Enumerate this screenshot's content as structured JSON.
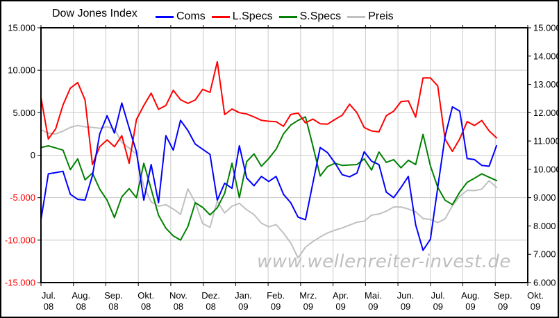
{
  "title": "Dow Jones Index",
  "watermark": {
    "text": "www.wellenreiter-invest.de",
    "color": "#bfbfbf"
  },
  "legend": [
    {
      "label": "Coms",
      "color": "#0000ff"
    },
    {
      "label": "L.Specs",
      "color": "#ff0000"
    },
    {
      "label": "S.Specs",
      "color": "#008000"
    },
    {
      "label": "Preis",
      "color": "#c0c0c0"
    }
  ],
  "colors": {
    "grid": "#c9c9c9",
    "frame": "#000000",
    "background": "#ffffff",
    "negative_tick": "#ff0000",
    "tick_text": "#000000"
  },
  "axes": {
    "left": {
      "labels": [
        "15.000",
        "10.000",
        "5.000",
        "0",
        "-5.000",
        "-10.000",
        "-15.000"
      ],
      "values": [
        15000,
        10000,
        5000,
        0,
        -5000,
        -10000,
        -15000
      ]
    },
    "right": {
      "labels": [
        "15.000",
        "14.000",
        "13.000",
        "12.000",
        "11.000",
        "10.000",
        "9.000",
        "8.000",
        "7.000",
        "6.000"
      ],
      "values": [
        15000,
        14000,
        13000,
        12000,
        11000,
        10000,
        9000,
        8000,
        7000,
        6000
      ]
    },
    "x": {
      "month_labels": [
        "Jul.",
        "Aug.",
        "Sep.",
        "Okt.",
        "Nov.",
        "Dez.",
        "Jan.",
        "Feb.",
        "Mrz.",
        "Apr.",
        "Mai.",
        "Jun.",
        "Jul.",
        "Aug.",
        "Sep.",
        "Okt."
      ],
      "year_labels": [
        "08",
        "08",
        "08",
        "08",
        "08",
        "08",
        "09",
        "09",
        "09",
        "09",
        "09",
        "09",
        "09",
        "09",
        "09",
        "09"
      ]
    }
  },
  "chart_data": {
    "type": "line",
    "title": "Dow Jones Index",
    "x_unit": "weekly COT data, Jul 2008 - Sep 2009 (63 points)",
    "grid": true,
    "legend_position": "top",
    "ylim_left": [
      -15000,
      15000
    ],
    "ylim_right": [
      6000,
      15000
    ],
    "x_tick_labels": [
      "Jul. 08",
      "Aug. 08",
      "Sep. 08",
      "Okt. 08",
      "Nov. 08",
      "Dez. 08",
      "Jan. 09",
      "Feb. 09",
      "Mrz. 09",
      "Apr. 09",
      "Mai. 09",
      "Jun. 09",
      "Jul. 09",
      "Aug. 09",
      "Sep. 09",
      "Okt. 09"
    ],
    "series": [
      {
        "name": "Coms",
        "color": "#0000ff",
        "axis": "left",
        "values": [
          -7600,
          -2200,
          -2050,
          -1900,
          -4600,
          -5200,
          -5300,
          -2400,
          2500,
          4650,
          2600,
          6150,
          3200,
          400,
          -5300,
          -1100,
          -5600,
          2300,
          600,
          4100,
          2900,
          1300,
          700,
          100,
          -5300,
          -3300,
          -3900,
          1100,
          -2700,
          -3600,
          -2500,
          -3100,
          -2500,
          -4600,
          -5600,
          -7300,
          -7600,
          -3300,
          900,
          300,
          -900,
          -2300,
          -2550,
          -2100,
          400,
          -700,
          -1100,
          -4350,
          -5000,
          -3800,
          -2500,
          -8200,
          -11200,
          -9900,
          -3800,
          2200,
          5690,
          5180,
          -400,
          -520,
          -1200,
          -1300,
          1100
        ]
      },
      {
        "name": "L.Specs",
        "color": "#ff0000",
        "axis": "left",
        "values": [
          6800,
          1900,
          3100,
          5900,
          7900,
          8550,
          6500,
          -1100,
          1000,
          1800,
          1000,
          2300,
          -950,
          4200,
          5850,
          7300,
          5400,
          5850,
          7640,
          6530,
          6100,
          6500,
          7750,
          7400,
          11000,
          4780,
          5440,
          5000,
          4850,
          4500,
          4100,
          4000,
          3950,
          3400,
          4800,
          4950,
          3800,
          4250,
          3700,
          3650,
          4200,
          4700,
          6000,
          5000,
          3250,
          2850,
          2750,
          4650,
          5180,
          6300,
          6400,
          4480,
          9100,
          9100,
          8150,
          1900,
          450,
          1930,
          3950,
          3500,
          4080,
          2850,
          2040
        ]
      },
      {
        "name": "S.Specs",
        "color": "#008000",
        "axis": "left",
        "values": [
          900,
          1100,
          850,
          600,
          -1700,
          -430,
          -2900,
          -2100,
          -4000,
          -5300,
          -7340,
          -4900,
          -3940,
          -5000,
          -950,
          -4000,
          -7070,
          -8600,
          -9500,
          -10000,
          -8400,
          -5600,
          -6140,
          -7030,
          -6200,
          -4500,
          -950,
          -5000,
          -750,
          150,
          -1300,
          -400,
          700,
          2500,
          3550,
          4100,
          4500,
          1100,
          -2450,
          -1350,
          -950,
          -1200,
          -1150,
          -1100,
          -430,
          -1750,
          380,
          -840,
          -520,
          -1490,
          -600,
          -1100,
          2450,
          -1250,
          -3780,
          -5300,
          -5820,
          -4350,
          -3200,
          -2710,
          -2200,
          -2600,
          -2980
        ]
      },
      {
        "name": "Preis",
        "color": "#c0c0c0",
        "axis": "right",
        "values": [
          11400,
          11280,
          11250,
          11350,
          11480,
          11550,
          11500,
          11480,
          11450,
          11500,
          11430,
          10950,
          10750,
          10540,
          9400,
          8850,
          8700,
          8750,
          8600,
          8410,
          9310,
          8830,
          8090,
          7950,
          8880,
          8460,
          8700,
          8800,
          8570,
          8400,
          8100,
          7970,
          8050,
          7750,
          7400,
          6870,
          7250,
          7450,
          7610,
          7750,
          7850,
          7930,
          8030,
          8130,
          8170,
          8380,
          8420,
          8520,
          8670,
          8670,
          8600,
          8500,
          8260,
          8230,
          8120,
          8250,
          8720,
          9050,
          9260,
          9250,
          9300,
          9600,
          9360
        ]
      }
    ]
  }
}
